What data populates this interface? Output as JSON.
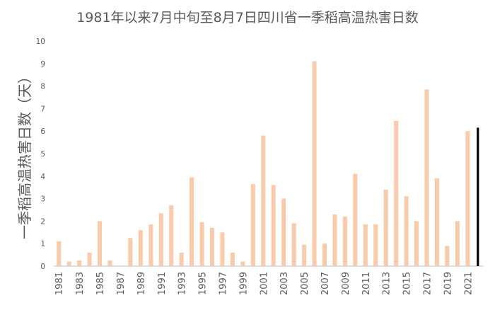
{
  "chart_data": {
    "type": "bar",
    "title": "1981年以来7月中旬至8月7日四川省一季稻高温热害日数",
    "xlabel": "",
    "ylabel": "一季稻高温热害日数（天）",
    "ylim": [
      0,
      10
    ],
    "yticks": [
      "0",
      "1",
      "2",
      "3",
      "4",
      "5",
      "6",
      "7",
      "8",
      "9",
      "10"
    ],
    "grid": false,
    "categories": [
      "1981",
      "1982",
      "1983",
      "1984",
      "1985",
      "1986",
      "1987",
      "1988",
      "1989",
      "1990",
      "1991",
      "1992",
      "1993",
      "1994",
      "1995",
      "1996",
      "1997",
      "1998",
      "1999",
      "2000",
      "2001",
      "2002",
      "2003",
      "2004",
      "2005",
      "2006",
      "2007",
      "2008",
      "2009",
      "2010",
      "2011",
      "2012",
      "2013",
      "2014",
      "2015",
      "2016",
      "2017",
      "2018",
      "2019",
      "2020",
      "2021",
      "2022"
    ],
    "xtick_labels": [
      "1981",
      "1983",
      "1985",
      "1987",
      "1989",
      "1991",
      "1993",
      "1995",
      "1997",
      "1999",
      "2001",
      "2003",
      "2005",
      "2007",
      "2009",
      "2011",
      "2013",
      "2015",
      "2017",
      "2019",
      "2021"
    ],
    "values": [
      1.1,
      0.2,
      0.25,
      0.6,
      2.0,
      0.25,
      0,
      1.25,
      1.6,
      1.85,
      2.35,
      2.7,
      0.6,
      3.95,
      1.95,
      1.7,
      1.5,
      0.6,
      0.2,
      3.65,
      5.8,
      3.6,
      3.0,
      1.9,
      0.95,
      9.1,
      1.0,
      2.3,
      2.2,
      4.1,
      1.85,
      1.85,
      3.4,
      6.45,
      3.1,
      2.0,
      7.85,
      3.9,
      0.9,
      2.0,
      6.0,
      6.15
    ],
    "colors": {
      "bar": "#F8CBAD",
      "highlight": "#000000",
      "axis": "#595959",
      "text": "#595959"
    },
    "highlight_index": 41
  }
}
